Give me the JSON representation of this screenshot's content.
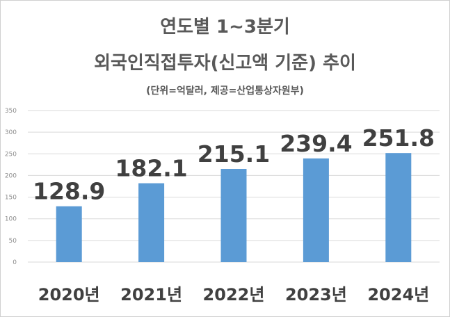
{
  "chart_data": {
    "type": "bar",
    "title": "연도별 1~3분기",
    "subtitle": "외국인직접투자(신고액 기준) 추이",
    "note": "(단위=억달러, 제공=산업통상자원부)",
    "categories": [
      "2020년",
      "2021년",
      "2022년",
      "2023년",
      "2024년"
    ],
    "values": [
      128.9,
      182.1,
      215.1,
      239.4,
      251.8
    ],
    "value_labels": [
      "128.9",
      "182.1",
      "215.1",
      "239.4",
      "251.8"
    ],
    "yticks": [
      "0",
      "50",
      "100",
      "150",
      "200",
      "250",
      "300",
      "350"
    ],
    "ylim": [
      0,
      350
    ],
    "grid": true,
    "legend": "none",
    "bar_color": "#5b9bd5",
    "grid_color": "#d9d9d9"
  }
}
